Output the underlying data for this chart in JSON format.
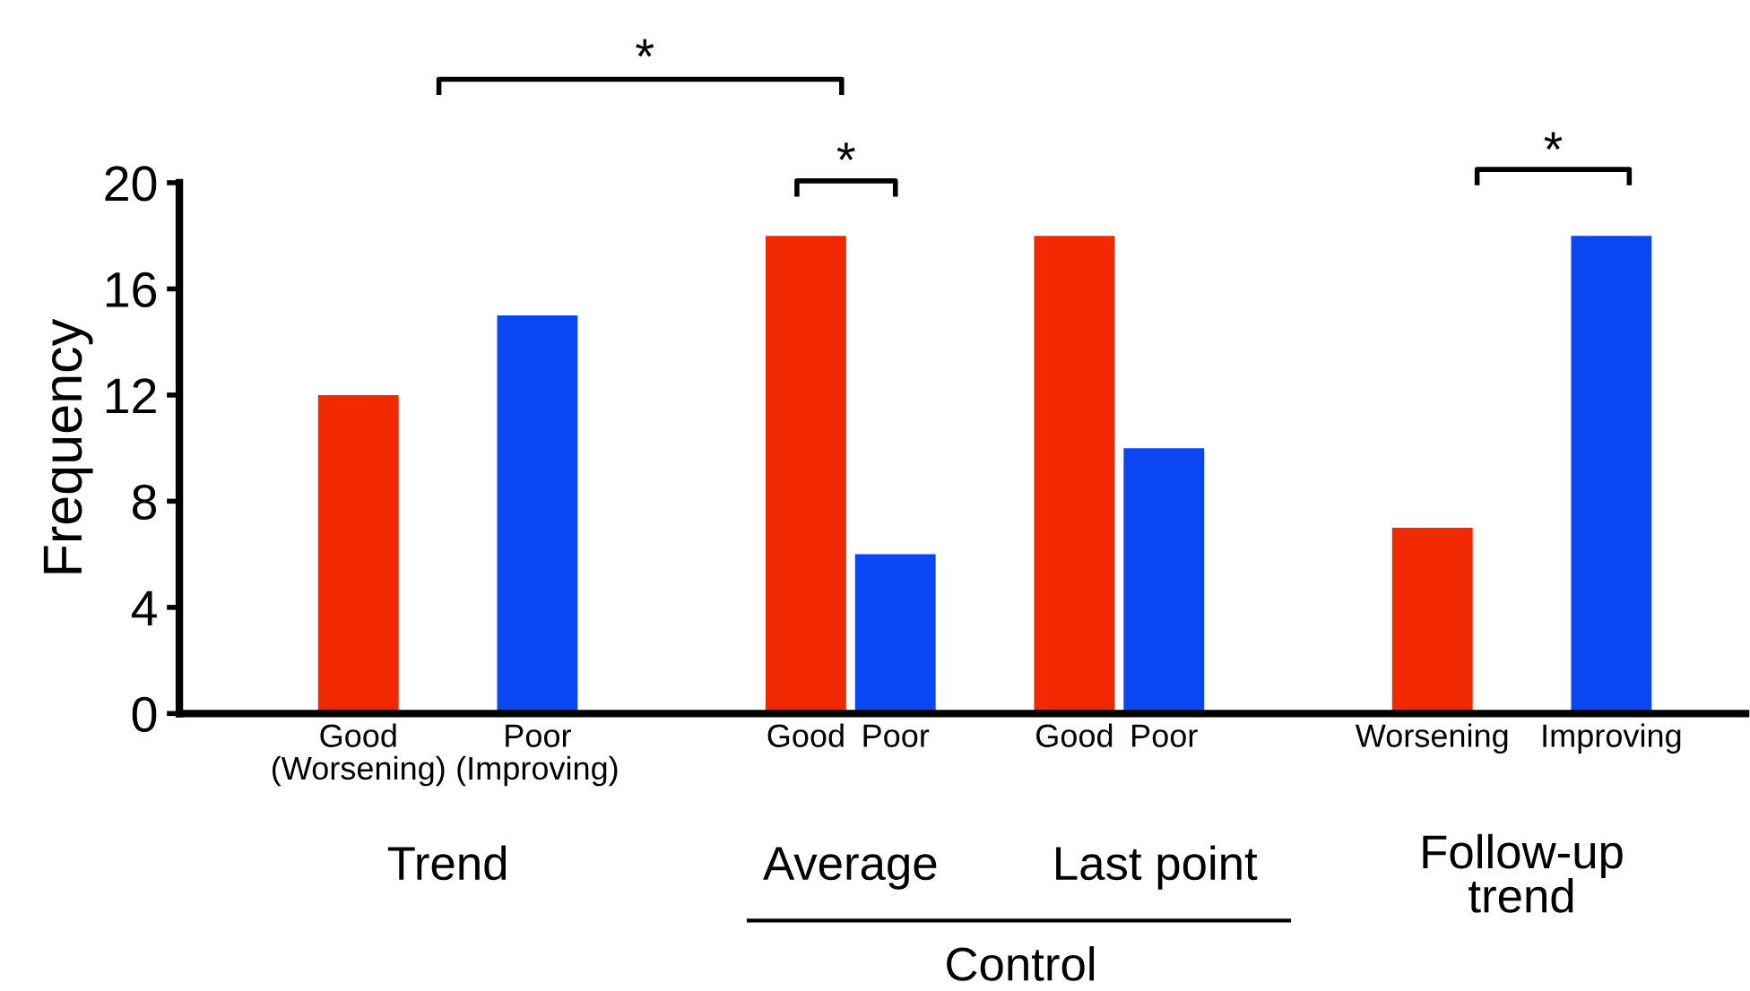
{
  "chart_data": {
    "type": "bar",
    "ylabel": "Frequency",
    "categories": [
      "Good\n(Worsening)",
      null,
      "Poor\n(Improving)",
      null,
      null,
      "Good",
      "Poor",
      null,
      "Good",
      "Poor",
      null,
      null,
      "Worsening",
      null,
      "Improving"
    ],
    "values": [
      12,
      null,
      15,
      null,
      null,
      18,
      6,
      null,
      18,
      10,
      null,
      null,
      7,
      null,
      18
    ],
    "colors": [
      "#f22800",
      null,
      "#0a46f2",
      null,
      null,
      "#f22800",
      "#0a46f2",
      null,
      "#f22800",
      "#0a46f2",
      null,
      null,
      "#f22800",
      null,
      "#0a46f2"
    ],
    "ylim": [
      0,
      20
    ],
    "yticks": [
      0,
      4,
      8,
      12,
      16,
      20
    ],
    "grid": false,
    "legend": false,
    "annotations": [
      "Trend",
      "Average",
      "Last point",
      "Follow-up\ntrend",
      "Control",
      "*",
      "*",
      "*"
    ]
  }
}
